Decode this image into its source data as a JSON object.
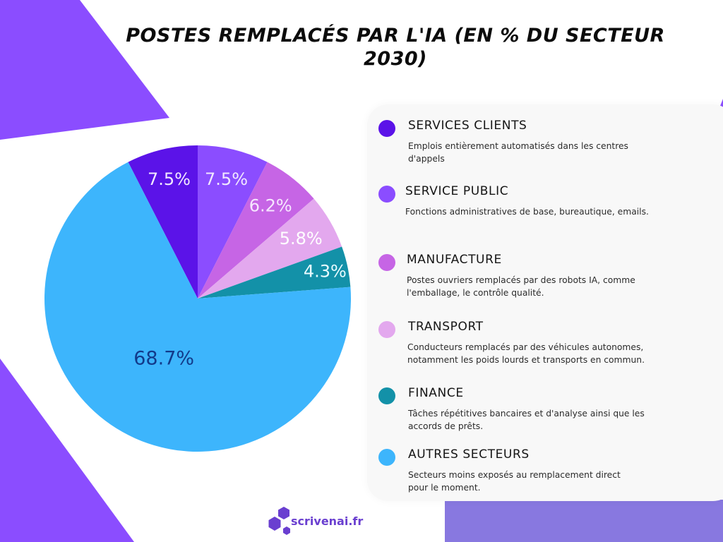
{
  "colors": {
    "decor_purple": "#8B4DFF",
    "decor_lavender": "#8878E0",
    "panel_bg": "#f8f8f8",
    "logo_purple": "#6a3fd0"
  },
  "chart_data": {
    "type": "pie",
    "title": "POSTES REMPLACÉS PAR L'IA (EN % DU SECTEUR 2030)",
    "unit": "%",
    "legend_position": "right",
    "slices": [
      {
        "label": "SERVICES CLIENTS",
        "value": 7.5,
        "display": "7.5%",
        "color": "#5B13E8",
        "label_color": "#f1e8ff",
        "description": "Emplois entièrement automatisés dans les centres d'appels"
      },
      {
        "label": "SERVICE PUBLIC",
        "value": 7.5,
        "display": "7.5%",
        "color": "#8B4DFF",
        "label_color": "#f1e8ff",
        "description": "Fonctions administratives de base, bureautique, emails."
      },
      {
        "label": "MANUFACTURE",
        "value": 6.2,
        "display": "6.2%",
        "color": "#C665E5",
        "label_color": "#f6e6ff",
        "description": "Postes ouvriers remplacés par des robots IA,  comme l'emballage, le contrôle qualité."
      },
      {
        "label": "TRANSPORT",
        "value": 5.8,
        "display": "5.8%",
        "color": "#E3A8EE",
        "label_color": "#ffffff",
        "description": "Conducteurs remplacés par des véhicules autonomes, notamment les poids lourds et transports en commun."
      },
      {
        "label": "FINANCE",
        "value": 4.3,
        "display": "4.3%",
        "color": "#1391A8",
        "label_color": "#e8fbff",
        "description": "Tâches répétitives bancaires et d'analyse ainsi que les accords de prêts."
      },
      {
        "label": "AUTRES SECTEURS",
        "value": 68.7,
        "display": "68.7%",
        "color": "#3DB5FC",
        "label_color": "#123a8a",
        "description": "Secteurs moins exposés au remplacement direct pour le moment."
      }
    ]
  },
  "brand": {
    "name": "scrivenai.fr"
  }
}
